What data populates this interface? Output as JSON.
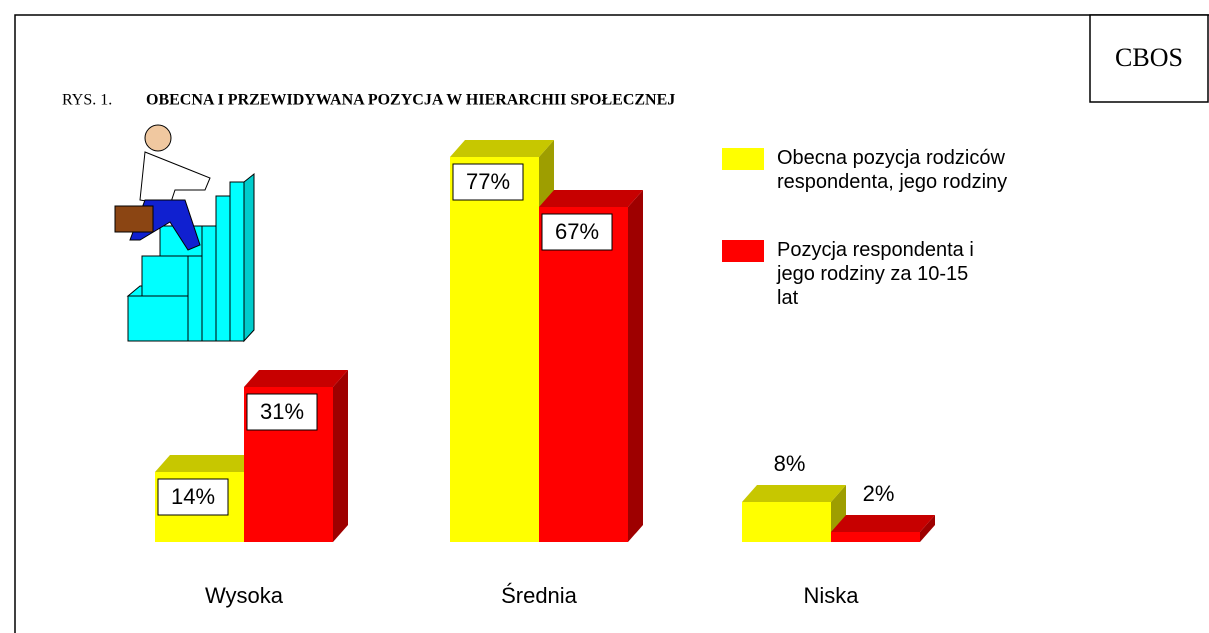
{
  "chart_data": {
    "type": "bar3d",
    "badge": "CBOS",
    "figure_label": "RYS. 1.",
    "title": "OBECNA I PRZEWIDYWANA POZYCJA W HIERARCHII SPOŁECZNEJ",
    "categories": [
      "Wysoka",
      "Średnia",
      "Niska"
    ],
    "series": [
      {
        "name": "Obecna pozycja rodziców respondenta, jego rodziny",
        "color": "#ffff00",
        "values": [
          14,
          77,
          8
        ],
        "value_labels": [
          "14%",
          "77%",
          "8%"
        ]
      },
      {
        "name": "Pozycja respondenta i jego rodziny za 10-15 lat",
        "color": "#ff0000",
        "values": [
          31,
          67,
          2
        ],
        "value_labels": [
          "31%",
          "67%",
          "2%"
        ]
      }
    ]
  }
}
